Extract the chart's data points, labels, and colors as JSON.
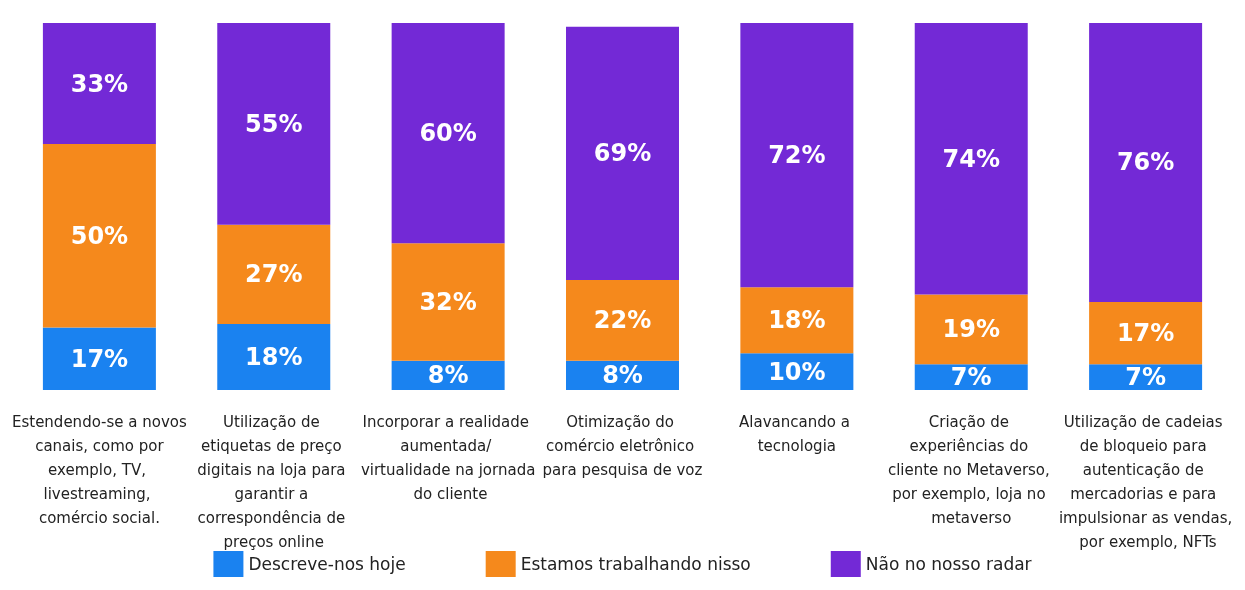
{
  "chart_data": {
    "type": "bar",
    "stacked": true,
    "legend": "bottom",
    "categories": [
      "Estendendo-se a novos canais, como por exemplo, TV, livestreaming, comércio social.",
      "Utilização de etiquetas de preço digitais na loja para garantir a correspondência de preços online",
      "Incorporar a realidade aumentada/ virtualidade na jornada do cliente",
      "Otimização do comércio eletrônico para pesquisa de voz",
      "Alavancando a tecnologia",
      "Criação de experiências do cliente no Metaverso, por exemplo, loja no metaverso",
      "Utilização de cadeias de bloqueio para autenticação de mercadorias e para impulsionar as vendas, por exemplo, NFTs"
    ],
    "series": [
      {
        "name": "Descreve-nos hoje",
        "color": "#1a82f0",
        "values": [
          17,
          18,
          8,
          8,
          10,
          7,
          7
        ],
        "value_labels": [
          "17%",
          "18%",
          "8%",
          "8%",
          "10%",
          "7%",
          "7%"
        ]
      },
      {
        "name": "Estamos trabalhando nisso",
        "color": "#f5891c",
        "values": [
          50,
          27,
          32,
          22,
          18,
          19,
          17
        ],
        "value_labels": [
          "50%",
          "27%",
          "32%",
          "22%",
          "18%",
          "19%",
          "17%"
        ]
      },
      {
        "name": "Não no nosso radar",
        "color": "#7329d6",
        "values": [
          33,
          55,
          60,
          69,
          72,
          74,
          76
        ],
        "value_labels": [
          "33%",
          "55%",
          "60%",
          "69%",
          "72%",
          "74%",
          "76%"
        ]
      }
    ]
  }
}
